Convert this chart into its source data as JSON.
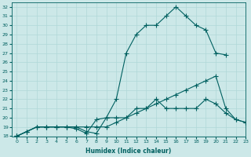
{
  "xlabel": "Humidex (Indice chaleur)",
  "background_color": "#cce8e8",
  "grid_color": "#b0d8d8",
  "line_color": "#006060",
  "xlim": [
    -0.5,
    23
  ],
  "ylim": [
    18,
    32.5
  ],
  "xticks": [
    0,
    1,
    2,
    3,
    4,
    5,
    6,
    7,
    8,
    9,
    10,
    11,
    12,
    13,
    14,
    15,
    16,
    17,
    18,
    19,
    20,
    21,
    22,
    23
  ],
  "yticks": [
    18,
    19,
    20,
    21,
    22,
    23,
    24,
    25,
    26,
    27,
    28,
    29,
    30,
    31,
    32
  ],
  "curve1_x": [
    0,
    1,
    2,
    3,
    4,
    5,
    6,
    7,
    8,
    9,
    10,
    11,
    12,
    13,
    14,
    15,
    16,
    17,
    18,
    19,
    20,
    21
  ],
  "curve1_y": [
    18,
    18.5,
    19,
    19,
    19,
    19,
    19,
    18.5,
    18.3,
    20,
    22,
    27,
    29,
    30,
    30,
    31,
    32,
    31,
    30,
    29.5,
    27,
    26.8
  ],
  "curve2_x": [
    0,
    1,
    2,
    3,
    4,
    5,
    6,
    7,
    8,
    9,
    10,
    11,
    12,
    13,
    14,
    15,
    16,
    17,
    18,
    19,
    20,
    21,
    22,
    23
  ],
  "curve2_y": [
    18,
    18.5,
    19,
    19,
    19,
    19,
    19,
    19,
    19,
    19,
    19.5,
    20,
    20.5,
    21,
    21.5,
    22,
    22.5,
    23,
    23.5,
    24,
    24.5,
    21,
    19.8,
    19.5
  ],
  "curve3_x": [
    0,
    1,
    2,
    3,
    4,
    5,
    6,
    7,
    8,
    9,
    10,
    11,
    12,
    13,
    14,
    15,
    16,
    17,
    18,
    19,
    20,
    21,
    22,
    23
  ],
  "curve3_y": [
    18,
    18.5,
    19,
    19,
    19,
    19,
    18.8,
    18.3,
    19.8,
    20,
    20,
    20,
    21,
    21,
    22,
    21,
    21,
    21,
    21,
    22,
    21.5,
    20.5,
    19.8,
    19.5
  ]
}
